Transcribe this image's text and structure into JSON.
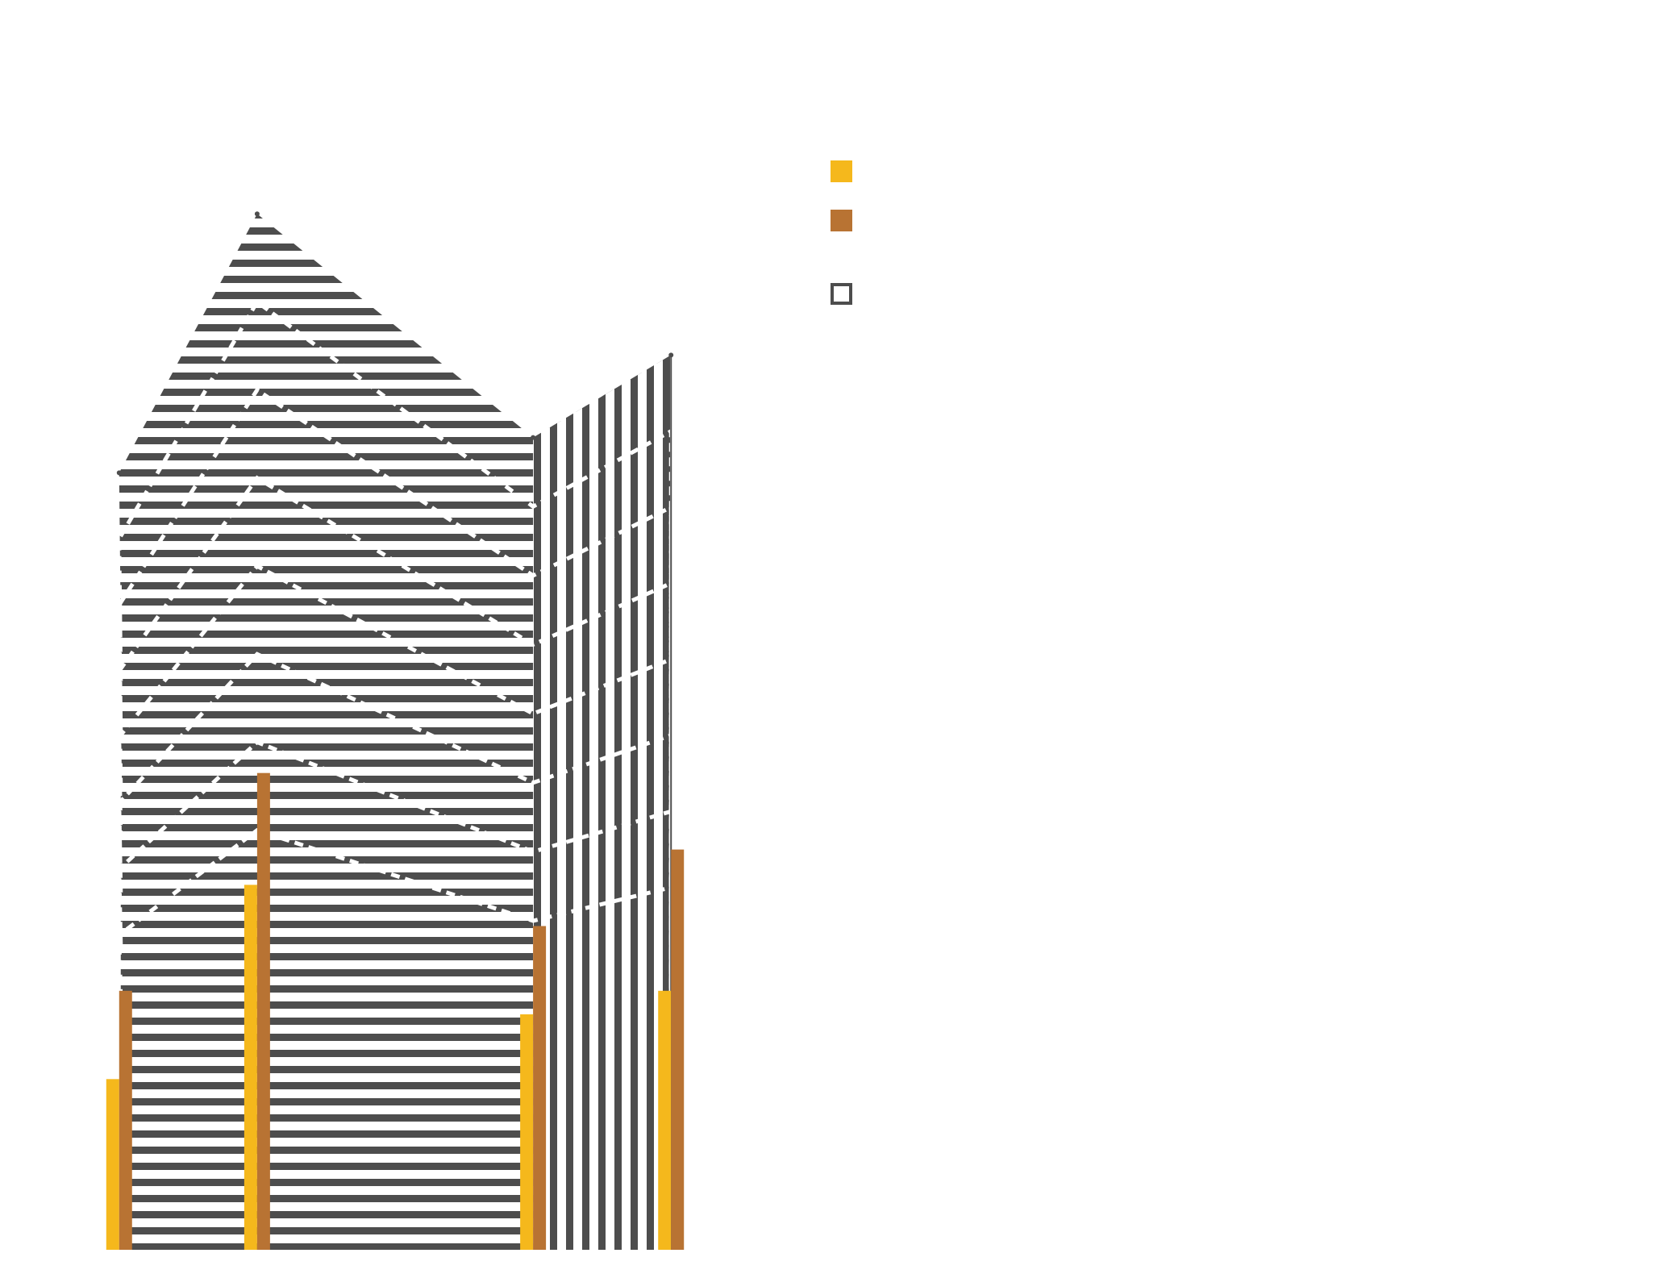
{
  "chart_data": {
    "type": "bar",
    "title": "",
    "xlabel": "",
    "ylabel": "",
    "categories": [
      "",
      "",
      "",
      ""
    ],
    "x": [
      1,
      2,
      4,
      5
    ],
    "xlim": [
      0.75,
      5.25
    ],
    "ylim": [
      0,
      1
    ],
    "series": [
      {
        "name": "",
        "kind": "bar",
        "color": "#F5B81C",
        "values": [
          0.145,
          0.31,
          0.2,
          0.22
        ]
      },
      {
        "name": "",
        "kind": "bar",
        "color": "#B87333",
        "values": [
          0.22,
          0.405,
          0.275,
          0.34
        ]
      },
      {
        "name": "",
        "kind": "outline",
        "color": "#4D4D4D",
        "values": [
          0.66,
          0.88,
          0.69,
          0.76
        ]
      }
    ],
    "annotations": [],
    "grid": false,
    "legend_position": "top-right"
  }
}
